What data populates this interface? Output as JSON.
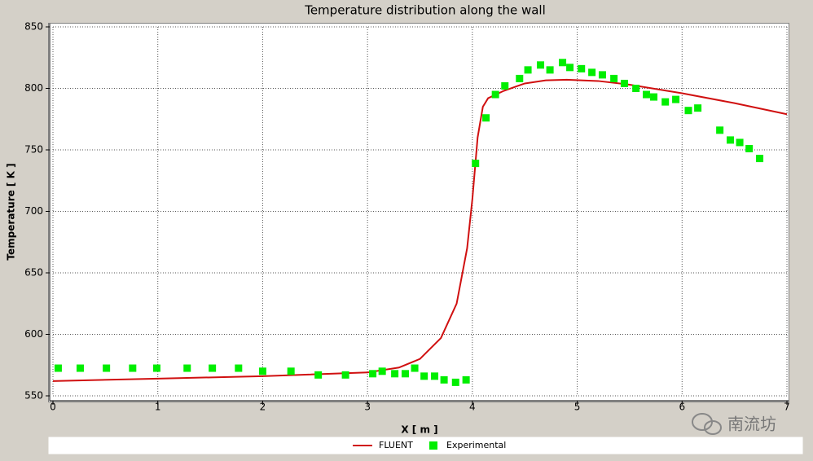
{
  "chart_data": {
    "type": "line",
    "title": "Temperature distribution along the wall",
    "x_label": "X [ m ]",
    "y_label": "Temperature [ K ]",
    "xlim": [
      0,
      7
    ],
    "xticks": [
      0,
      1,
      2,
      3,
      4,
      5,
      6,
      7
    ],
    "ylim": [
      550,
      850
    ],
    "yticks": [
      550,
      600,
      650,
      700,
      750,
      800,
      850
    ],
    "grid": true,
    "legend": "bottom",
    "watermark": "南流坊",
    "series": [
      {
        "name": "FLUENT",
        "color": "#d01010",
        "style": "line",
        "x": [
          0,
          1,
          2,
          3,
          3.3,
          3.5,
          3.7,
          3.85,
          3.95,
          4.0,
          4.05,
          4.1,
          4.15,
          4.3,
          4.5,
          4.7,
          4.9,
          5.2,
          5.5,
          6,
          6.5,
          7
        ],
        "values": [
          562,
          564,
          566,
          569,
          573,
          580,
          597,
          625,
          670,
          710,
          760,
          785,
          792,
          798,
          804,
          806.5,
          807,
          806,
          803,
          796,
          788,
          779
        ]
      },
      {
        "name": "Experimental",
        "color": "#00ee00",
        "style": "marker",
        "x": [
          0.05,
          0.26,
          0.51,
          0.76,
          0.99,
          1.28,
          1.52,
          1.77,
          2.0,
          2.27,
          2.53,
          2.79,
          3.05,
          3.14,
          3.26,
          3.36,
          3.45,
          3.54,
          3.64,
          3.73,
          3.84,
          3.94,
          4.03,
          4.13,
          4.22,
          4.31,
          4.45,
          4.53,
          4.65,
          4.74,
          4.86,
          4.93,
          5.04,
          5.14,
          5.24,
          5.35,
          5.45,
          5.56,
          5.66,
          5.73,
          5.84,
          5.94,
          6.06,
          6.15,
          6.36,
          6.46,
          6.55,
          6.64,
          6.74
        ],
        "values": [
          572.5,
          572.5,
          572.5,
          572.5,
          572.5,
          572.5,
          572.5,
          572.5,
          570,
          570,
          567,
          567,
          568,
          570,
          568,
          568,
          572.5,
          566,
          566,
          563,
          561,
          563,
          739,
          776,
          795,
          802,
          808,
          815,
          819,
          815,
          821,
          817,
          816,
          813,
          811,
          808,
          804,
          800,
          795,
          793,
          789,
          791,
          782,
          784,
          766,
          758,
          756,
          751,
          743
        ]
      }
    ]
  }
}
